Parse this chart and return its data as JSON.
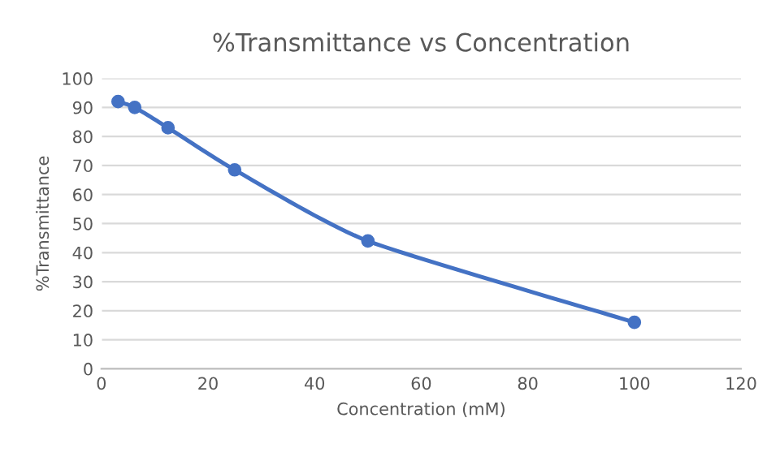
{
  "chart_data": {
    "type": "line",
    "title": "%Transmittance vs Concentration",
    "xlabel": "Concentration (mM)",
    "ylabel": "%Transmittance",
    "x": [
      3.125,
      6.25,
      12.5,
      25,
      50,
      100
    ],
    "series": [
      {
        "color": "#4472c4",
        "values": [
          92,
          90,
          83,
          68.5,
          44,
          16
        ]
      }
    ],
    "xlim": [
      0,
      120
    ],
    "xticks": [
      0,
      20,
      40,
      60,
      80,
      100,
      120
    ],
    "ylim": [
      0,
      100
    ],
    "yticks": [
      0,
      10,
      20,
      30,
      40,
      50,
      60,
      70,
      80,
      90,
      100
    ],
    "grid": "y",
    "marker": "circle",
    "line_style": "solid",
    "legend": false
  }
}
